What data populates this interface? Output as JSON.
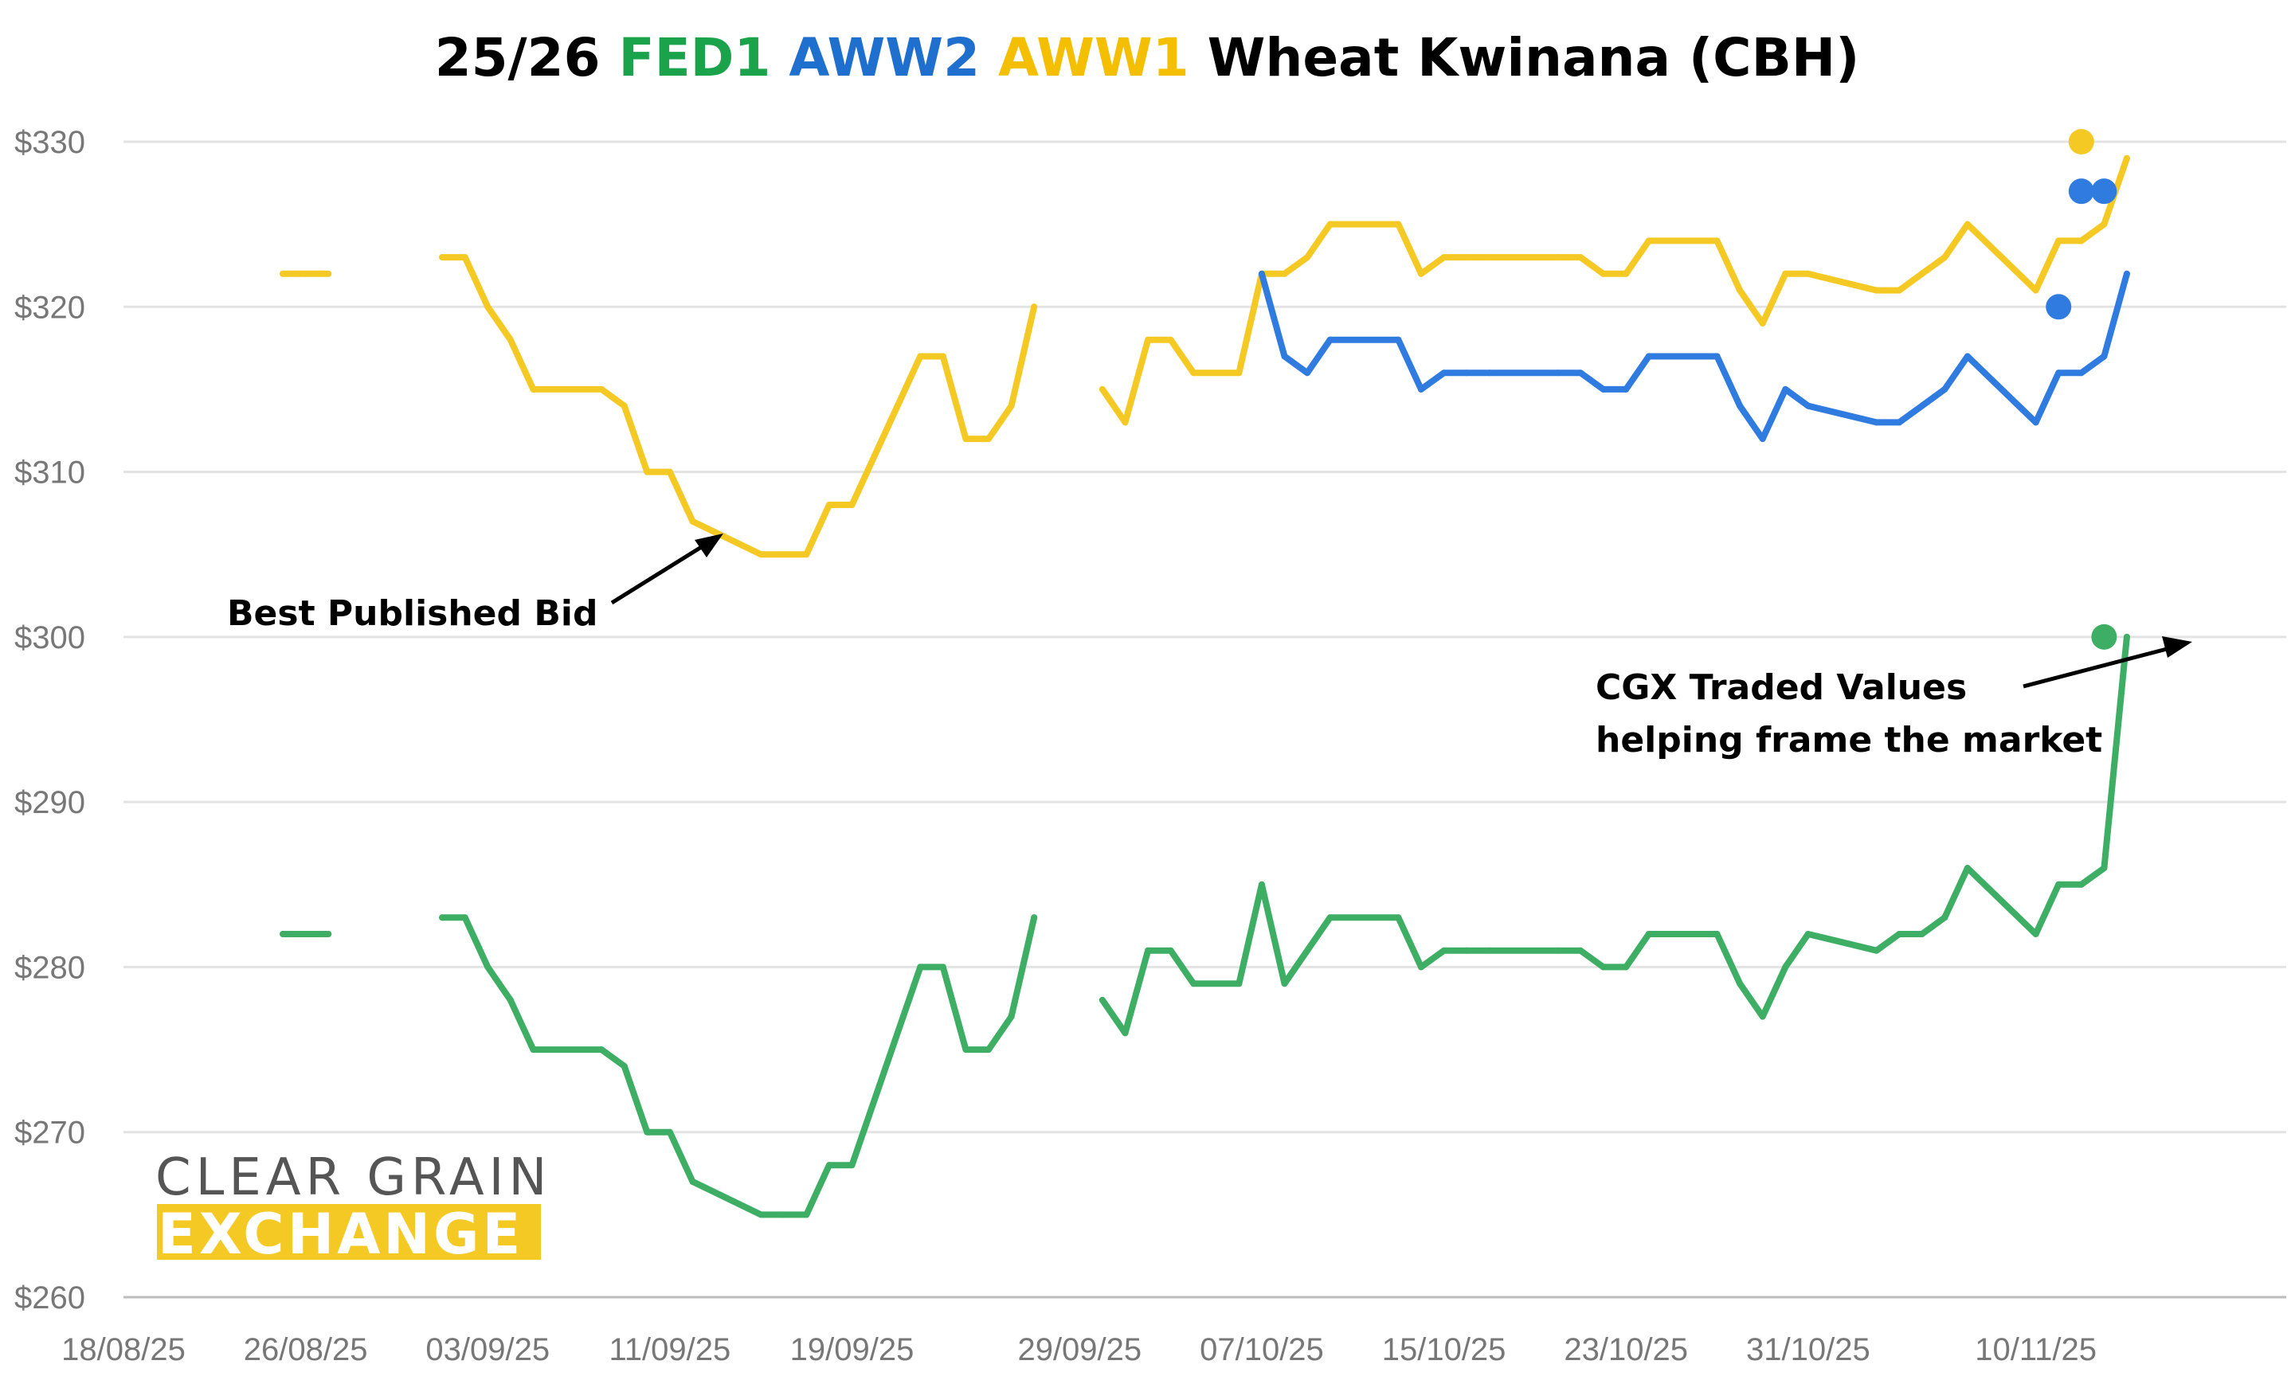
{
  "title": {
    "prefix": "25/26",
    "fed1": "FED1",
    "aww2": "AWW2",
    "aww1": "AWW1",
    "suffix": "Wheat Kwinana (CBH)"
  },
  "colors": {
    "fed1": "#3dae64",
    "aww2": "#2f7be0",
    "aww1": "#f5c924",
    "title_fed1": "#1aa34a",
    "title_aww2": "#1f6fce",
    "title_aww1": "#f4bf00",
    "grid": "#e3e3e3",
    "axis_text": "#777777"
  },
  "annotations": {
    "best_bid": "Best Published Bid",
    "cgx_line1": "CGX Traded Values",
    "cgx_line2": "helping frame the market"
  },
  "logo": {
    "line1": "CLEAR GRAIN",
    "line2": "EXCHANGE"
  },
  "chart_data": {
    "type": "line",
    "title": "25/26 FED1 AWW2 AWW1 Wheat Kwinana (CBH)",
    "xlabel": "",
    "ylabel": "",
    "ylim": [
      260,
      330
    ],
    "xlim": [
      "2025-08-18",
      "2025-11-21"
    ],
    "y_ticks": [
      "$260",
      "$270",
      "$280",
      "$290",
      "$300",
      "$310",
      "$320",
      "$330"
    ],
    "x_ticks": [
      {
        "label": "18/08/25",
        "date": "2025-08-18"
      },
      {
        "label": "26/08/25",
        "date": "2025-08-26"
      },
      {
        "label": "03/09/25",
        "date": "2025-09-03"
      },
      {
        "label": "11/09/25",
        "date": "2025-09-11"
      },
      {
        "label": "19/09/25",
        "date": "2025-09-19"
      },
      {
        "label": "29/09/25",
        "date": "2025-09-29"
      },
      {
        "label": "07/10/25",
        "date": "2025-10-07"
      },
      {
        "label": "15/10/25",
        "date": "2025-10-15"
      },
      {
        "label": "23/10/25",
        "date": "2025-10-23"
      },
      {
        "label": "31/10/25",
        "date": "2025-10-31"
      },
      {
        "label": "10/11/25",
        "date": "2025-11-10"
      }
    ],
    "grid": true,
    "legend": "title-colored",
    "series": [
      {
        "key": "aww1",
        "segments": [
          [
            [
              "2025-08-25",
              322
            ],
            [
              "2025-08-26",
              322
            ],
            [
              "2025-08-27",
              322
            ]
          ],
          [
            [
              "2025-09-01",
              323
            ],
            [
              "2025-09-02",
              323
            ],
            [
              "2025-09-03",
              320
            ],
            [
              "2025-09-04",
              318
            ],
            [
              "2025-09-05",
              315
            ],
            [
              "2025-09-08",
              315
            ],
            [
              "2025-09-09",
              314
            ],
            [
              "2025-09-10",
              310
            ],
            [
              "2025-09-11",
              310
            ],
            [
              "2025-09-12",
              307
            ],
            [
              "2025-09-15",
              305
            ],
            [
              "2025-09-16",
              305
            ],
            [
              "2025-09-17",
              305
            ],
            [
              "2025-09-18",
              308
            ],
            [
              "2025-09-19",
              308
            ],
            [
              "2025-09-22",
              317
            ],
            [
              "2025-09-23",
              317
            ],
            [
              "2025-09-24",
              312
            ],
            [
              "2025-09-25",
              312
            ],
            [
              "2025-09-26",
              314
            ],
            [
              "2025-09-27",
              320
            ]
          ],
          [
            [
              "2025-09-30",
              315
            ],
            [
              "2025-10-01",
              313
            ],
            [
              "2025-10-02",
              318
            ],
            [
              "2025-10-03",
              318
            ],
            [
              "2025-10-04",
              316
            ],
            [
              "2025-10-06",
              316
            ],
            [
              "2025-10-07",
              322
            ],
            [
              "2025-10-08",
              322
            ],
            [
              "2025-10-09",
              323
            ],
            [
              "2025-10-10",
              325
            ],
            [
              "2025-10-13",
              325
            ],
            [
              "2025-10-14",
              322
            ],
            [
              "2025-10-15",
              323
            ],
            [
              "2025-10-16",
              323
            ],
            [
              "2025-10-17",
              323
            ],
            [
              "2025-10-20",
              323
            ],
            [
              "2025-10-21",
              323
            ],
            [
              "2025-10-22",
              322
            ],
            [
              "2025-10-23",
              322
            ],
            [
              "2025-10-24",
              324
            ],
            [
              "2025-10-27",
              324
            ],
            [
              "2025-10-28",
              321
            ],
            [
              "2025-10-29",
              319
            ],
            [
              "2025-10-30",
              322
            ],
            [
              "2025-10-31",
              322
            ],
            [
              "2025-11-03",
              321
            ],
            [
              "2025-11-04",
              321
            ],
            [
              "2025-11-05",
              322
            ],
            [
              "2025-11-06",
              323
            ],
            [
              "2025-11-07",
              325
            ],
            [
              "2025-11-10",
              321
            ],
            [
              "2025-11-11",
              324
            ],
            [
              "2025-11-12",
              324
            ],
            [
              "2025-11-13",
              325
            ],
            [
              "2025-11-14",
              329
            ]
          ]
        ],
        "traded": [
          [
            "2025-11-12",
            330
          ]
        ]
      },
      {
        "key": "aww2",
        "segments": [
          [
            [
              "2025-10-07",
              322
            ],
            [
              "2025-10-08",
              317
            ],
            [
              "2025-10-09",
              316
            ],
            [
              "2025-10-10",
              318
            ],
            [
              "2025-10-13",
              318
            ],
            [
              "2025-10-14",
              315
            ],
            [
              "2025-10-15",
              316
            ],
            [
              "2025-10-16",
              316
            ],
            [
              "2025-10-17",
              316
            ],
            [
              "2025-10-20",
              316
            ],
            [
              "2025-10-21",
              316
            ],
            [
              "2025-10-22",
              315
            ],
            [
              "2025-10-23",
              315
            ],
            [
              "2025-10-24",
              317
            ],
            [
              "2025-10-27",
              317
            ],
            [
              "2025-10-28",
              314
            ],
            [
              "2025-10-29",
              312
            ],
            [
              "2025-10-30",
              315
            ],
            [
              "2025-10-31",
              314
            ],
            [
              "2025-11-03",
              313
            ],
            [
              "2025-11-04",
              313
            ],
            [
              "2025-11-05",
              314
            ],
            [
              "2025-11-06",
              315
            ],
            [
              "2025-11-07",
              317
            ],
            [
              "2025-11-10",
              313
            ],
            [
              "2025-11-11",
              316
            ],
            [
              "2025-11-12",
              316
            ],
            [
              "2025-11-13",
              317
            ],
            [
              "2025-11-14",
              322
            ]
          ]
        ],
        "traded": [
          [
            "2025-11-11",
            320
          ],
          [
            "2025-11-12",
            327
          ],
          [
            "2025-11-13",
            327
          ]
        ]
      },
      {
        "key": "fed1",
        "segments": [
          [
            [
              "2025-08-25",
              282
            ],
            [
              "2025-08-26",
              282
            ],
            [
              "2025-08-27",
              282
            ]
          ],
          [
            [
              "2025-09-01",
              283
            ],
            [
              "2025-09-02",
              283
            ],
            [
              "2025-09-03",
              280
            ],
            [
              "2025-09-04",
              278
            ],
            [
              "2025-09-05",
              275
            ],
            [
              "2025-09-08",
              275
            ],
            [
              "2025-09-09",
              274
            ],
            [
              "2025-09-10",
              270
            ],
            [
              "2025-09-11",
              270
            ],
            [
              "2025-09-12",
              267
            ],
            [
              "2025-09-15",
              265
            ],
            [
              "2025-09-16",
              265
            ],
            [
              "2025-09-17",
              265
            ],
            [
              "2025-09-18",
              268
            ],
            [
              "2025-09-19",
              268
            ],
            [
              "2025-09-22",
              280
            ],
            [
              "2025-09-23",
              280
            ],
            [
              "2025-09-24",
              275
            ],
            [
              "2025-09-25",
              275
            ],
            [
              "2025-09-26",
              277
            ],
            [
              "2025-09-27",
              283
            ]
          ],
          [
            [
              "2025-09-30",
              278
            ],
            [
              "2025-10-01",
              276
            ],
            [
              "2025-10-02",
              281
            ],
            [
              "2025-10-03",
              281
            ],
            [
              "2025-10-04",
              279
            ],
            [
              "2025-10-06",
              279
            ],
            [
              "2025-10-07",
              285
            ],
            [
              "2025-10-08",
              279
            ],
            [
              "2025-10-09",
              281
            ],
            [
              "2025-10-10",
              283
            ],
            [
              "2025-10-13",
              283
            ],
            [
              "2025-10-14",
              280
            ],
            [
              "2025-10-15",
              281
            ],
            [
              "2025-10-16",
              281
            ],
            [
              "2025-10-17",
              281
            ],
            [
              "2025-10-20",
              281
            ],
            [
              "2025-10-21",
              281
            ],
            [
              "2025-10-22",
              280
            ],
            [
              "2025-10-23",
              280
            ],
            [
              "2025-10-24",
              282
            ],
            [
              "2025-10-27",
              282
            ],
            [
              "2025-10-28",
              279
            ],
            [
              "2025-10-29",
              277
            ],
            [
              "2025-10-30",
              280
            ],
            [
              "2025-10-31",
              282
            ],
            [
              "2025-11-03",
              281
            ],
            [
              "2025-11-04",
              282
            ],
            [
              "2025-11-05",
              282
            ],
            [
              "2025-11-06",
              283
            ],
            [
              "2025-11-07",
              286
            ],
            [
              "2025-11-10",
              282
            ],
            [
              "2025-11-11",
              285
            ],
            [
              "2025-11-12",
              285
            ],
            [
              "2025-11-13",
              286
            ],
            [
              "2025-11-14",
              300
            ]
          ]
        ],
        "traded": [
          [
            "2025-11-13",
            300
          ]
        ]
      }
    ]
  }
}
